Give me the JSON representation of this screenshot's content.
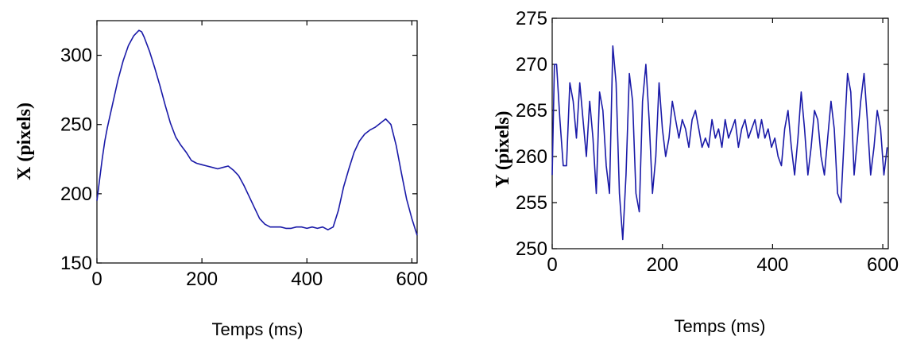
{
  "chart_data": [
    {
      "type": "line",
      "title": "",
      "xlabel": "Temps (ms)",
      "ylabel": "X (pixels)",
      "xlim": [
        0,
        610
      ],
      "ylim": [
        150,
        325
      ],
      "xticks": [
        0,
        200,
        400,
        600
      ],
      "yticks": [
        150,
        200,
        250,
        300
      ],
      "grid": false,
      "line_color": "#1a1aa8",
      "x": [
        0,
        5,
        10,
        15,
        20,
        30,
        40,
        50,
        60,
        70,
        80,
        85,
        90,
        100,
        110,
        120,
        130,
        140,
        150,
        160,
        170,
        180,
        190,
        200,
        210,
        220,
        230,
        240,
        250,
        260,
        270,
        280,
        290,
        300,
        310,
        320,
        330,
        340,
        350,
        360,
        370,
        380,
        390,
        400,
        410,
        420,
        430,
        440,
        450,
        460,
        470,
        480,
        490,
        500,
        510,
        520,
        530,
        540,
        550,
        560,
        570,
        580,
        590,
        600,
        610
      ],
      "values": [
        195,
        210,
        225,
        238,
        248,
        265,
        282,
        296,
        307,
        314,
        318,
        317,
        313,
        303,
        291,
        278,
        264,
        251,
        241,
        235,
        230,
        224,
        222,
        221,
        220,
        219,
        218,
        219,
        220,
        217,
        213,
        206,
        198,
        190,
        182,
        178,
        176,
        176,
        176,
        175,
        175,
        176,
        176,
        175,
        176,
        175,
        176,
        174,
        176,
        188,
        205,
        218,
        230,
        238,
        243,
        246,
        248,
        251,
        254,
        250,
        235,
        215,
        196,
        182,
        170
      ]
    },
    {
      "type": "line",
      "title": "",
      "xlabel": "Temps (ms)",
      "ylabel": "Y (pixels)",
      "xlim": [
        0,
        610
      ],
      "ylim": [
        250,
        275
      ],
      "xticks": [
        0,
        200,
        400,
        600
      ],
      "yticks": [
        250,
        255,
        260,
        265,
        270,
        275
      ],
      "grid": false,
      "line_color": "#1a1aa8",
      "x": [
        0,
        4,
        8,
        14,
        20,
        26,
        32,
        38,
        44,
        50,
        56,
        62,
        68,
        74,
        80,
        86,
        92,
        98,
        104,
        110,
        116,
        122,
        128,
        134,
        140,
        146,
        152,
        158,
        164,
        170,
        176,
        182,
        188,
        194,
        200,
        206,
        212,
        218,
        224,
        230,
        236,
        242,
        248,
        254,
        260,
        266,
        272,
        278,
        284,
        290,
        296,
        302,
        308,
        314,
        320,
        326,
        332,
        338,
        344,
        350,
        356,
        362,
        368,
        374,
        380,
        386,
        392,
        398,
        404,
        410,
        416,
        422,
        428,
        434,
        440,
        446,
        452,
        458,
        464,
        470,
        476,
        482,
        488,
        494,
        500,
        506,
        512,
        518,
        524,
        530,
        536,
        542,
        548,
        554,
        560,
        566,
        572,
        578,
        584,
        590,
        596,
        602,
        608
      ],
      "values": [
        258,
        270,
        270,
        264,
        259,
        259,
        268,
        266,
        262,
        268,
        264,
        260,
        266,
        262,
        256,
        267,
        265,
        259,
        256,
        272,
        268,
        256,
        251,
        258,
        269,
        266,
        256,
        254,
        266,
        270,
        264,
        256,
        260,
        268,
        263,
        260,
        262,
        266,
        264,
        262,
        264,
        263,
        261,
        264,
        265,
        263,
        261,
        262,
        261,
        264,
        262,
        263,
        261,
        264,
        262,
        263,
        264,
        261,
        263,
        264,
        262,
        263,
        264,
        262,
        264,
        262,
        263,
        261,
        262,
        260,
        259,
        263,
        265,
        261,
        258,
        262,
        267,
        263,
        258,
        261,
        265,
        264,
        260,
        258,
        262,
        266,
        263,
        256,
        255,
        262,
        269,
        267,
        258,
        262,
        266,
        269,
        264,
        258,
        261,
        265,
        263,
        258,
        261
      ]
    }
  ]
}
